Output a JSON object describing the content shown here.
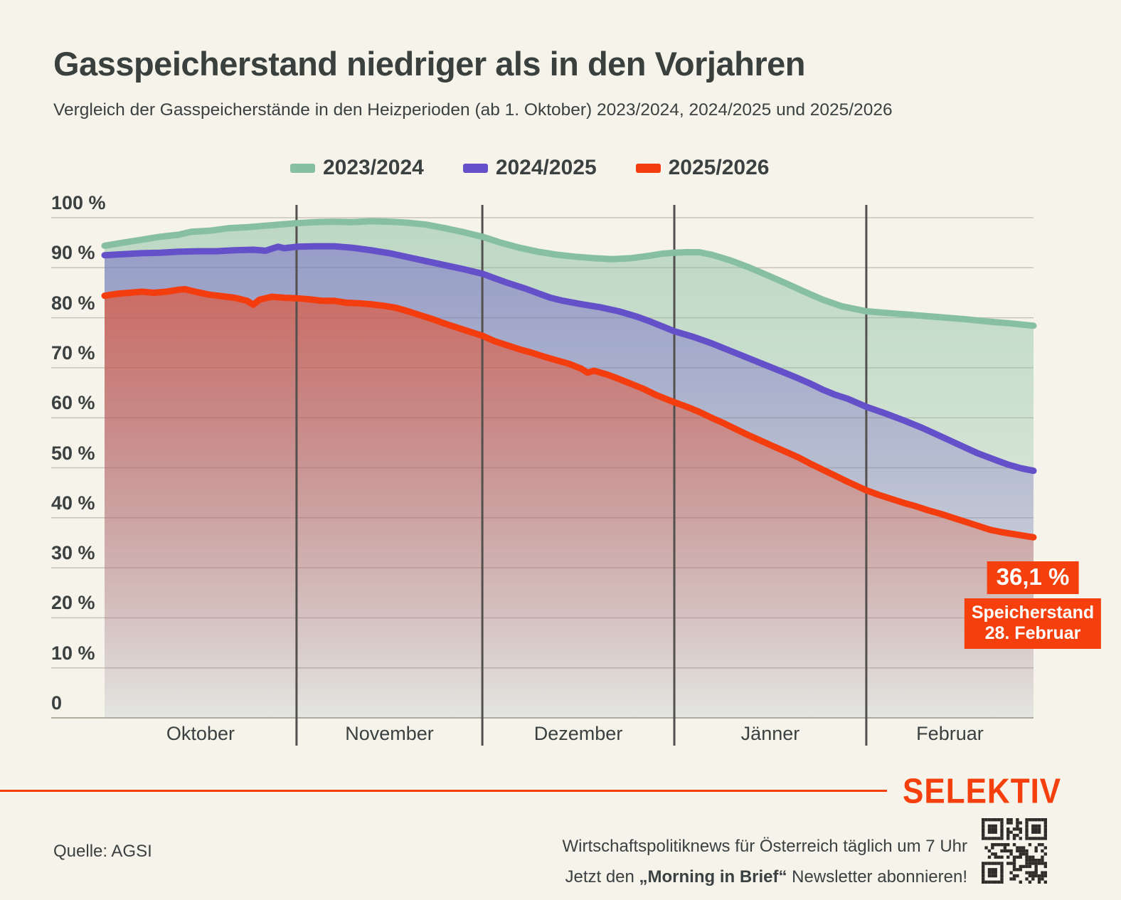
{
  "page": {
    "background": "#f6f3ea",
    "accent": "#f5400d",
    "text_color": "#3a4140"
  },
  "header": {
    "title": "Gasspeicherstand niedriger als in den Vorjahren",
    "subtitle": "Vergleich der Gasspeicherstände in den Heizperioden (ab 1. Oktober) 2023/2024, 2024/2025 und 2025/2026"
  },
  "legend": [
    {
      "label": "2023/2024",
      "color": "#87bfa2"
    },
    {
      "label": "2024/2025",
      "color": "#6450c8"
    },
    {
      "label": "2025/2026",
      "color": "#f43d0e"
    }
  ],
  "chart_data": {
    "type": "area",
    "title": "Gasspeicherstand niedriger als in den Vorjahren",
    "x_unit": "Tage ab 1. Oktober",
    "x_axis": {
      "months": [
        "Oktober",
        "November",
        "Dezember",
        "Jänner",
        "Februar"
      ],
      "month_boundaries_days": [
        0,
        31,
        61,
        92,
        123,
        150
      ]
    },
    "y_axis": {
      "min": 0,
      "max": 100,
      "ticks": [
        100,
        90,
        80,
        70,
        60,
        50,
        40,
        30,
        20,
        10,
        0
      ],
      "labels": [
        "100 %",
        "90 %",
        "80 %",
        "70 %",
        "60 %",
        "50 %",
        "40 %",
        "30 %",
        "20 %",
        "10 %",
        "0"
      ]
    },
    "grid": "horizontal",
    "legend_position": "top",
    "series": [
      {
        "name": "2023/2024",
        "color": "#87bfa2",
        "fill_alpha": [
          0.52,
          0.1
        ],
        "points": [
          [
            0,
            94.4
          ],
          [
            3,
            95.0
          ],
          [
            6,
            95.6
          ],
          [
            9,
            96.2
          ],
          [
            12,
            96.6
          ],
          [
            14,
            97.2
          ],
          [
            17,
            97.4
          ],
          [
            20,
            97.9
          ],
          [
            23,
            98.1
          ],
          [
            26,
            98.4
          ],
          [
            29,
            98.7
          ],
          [
            31,
            98.9
          ],
          [
            34,
            99.1
          ],
          [
            37,
            99.2
          ],
          [
            40,
            99.1
          ],
          [
            43,
            99.3
          ],
          [
            46,
            99.2
          ],
          [
            49,
            99.0
          ],
          [
            52,
            98.6
          ],
          [
            55,
            97.9
          ],
          [
            58,
            97.1
          ],
          [
            61,
            96.2
          ],
          [
            64,
            95.0
          ],
          [
            67,
            94.0
          ],
          [
            70,
            93.2
          ],
          [
            73,
            92.6
          ],
          [
            76,
            92.2
          ],
          [
            79,
            91.9
          ],
          [
            82,
            91.7
          ],
          [
            85,
            91.9
          ],
          [
            88,
            92.4
          ],
          [
            90,
            92.8
          ],
          [
            92,
            93.0
          ],
          [
            94,
            93.1
          ],
          [
            96,
            93.1
          ],
          [
            98,
            92.6
          ],
          [
            101,
            91.5
          ],
          [
            104,
            90.1
          ],
          [
            107,
            88.5
          ],
          [
            110,
            86.9
          ],
          [
            113,
            85.2
          ],
          [
            116,
            83.6
          ],
          [
            119,
            82.3
          ],
          [
            123,
            81.3
          ],
          [
            127,
            80.9
          ],
          [
            131,
            80.5
          ],
          [
            135,
            80.1
          ],
          [
            139,
            79.7
          ],
          [
            143,
            79.2
          ],
          [
            146,
            78.9
          ],
          [
            150,
            78.4
          ]
        ]
      },
      {
        "name": "2024/2025",
        "color": "#6450c8",
        "fill_alpha": [
          0.46,
          0.05
        ],
        "points": [
          [
            0,
            92.5
          ],
          [
            3,
            92.7
          ],
          [
            6,
            92.9
          ],
          [
            9,
            93.0
          ],
          [
            12,
            93.2
          ],
          [
            15,
            93.3
          ],
          [
            18,
            93.3
          ],
          [
            21,
            93.5
          ],
          [
            24,
            93.6
          ],
          [
            26,
            93.4
          ],
          [
            28,
            94.2
          ],
          [
            29,
            93.9
          ],
          [
            31,
            94.2
          ],
          [
            34,
            94.3
          ],
          [
            37,
            94.3
          ],
          [
            40,
            94.0
          ],
          [
            43,
            93.5
          ],
          [
            46,
            92.9
          ],
          [
            49,
            92.1
          ],
          [
            52,
            91.3
          ],
          [
            55,
            90.5
          ],
          [
            58,
            89.7
          ],
          [
            61,
            88.8
          ],
          [
            63,
            87.9
          ],
          [
            65,
            87.0
          ],
          [
            68,
            85.8
          ],
          [
            70,
            84.9
          ],
          [
            72,
            84.0
          ],
          [
            74,
            83.4
          ],
          [
            77,
            82.7
          ],
          [
            80,
            82.1
          ],
          [
            83,
            81.3
          ],
          [
            86,
            80.2
          ],
          [
            88,
            79.3
          ],
          [
            90,
            78.3
          ],
          [
            92,
            77.3
          ],
          [
            95,
            76.2
          ],
          [
            98,
            74.9
          ],
          [
            101,
            73.4
          ],
          [
            104,
            71.9
          ],
          [
            107,
            70.4
          ],
          [
            110,
            68.9
          ],
          [
            112,
            67.9
          ],
          [
            114,
            66.8
          ],
          [
            116,
            65.6
          ],
          [
            118,
            64.6
          ],
          [
            120,
            63.8
          ],
          [
            123,
            62.2
          ],
          [
            126,
            60.9
          ],
          [
            129,
            59.5
          ],
          [
            132,
            58.0
          ],
          [
            135,
            56.3
          ],
          [
            138,
            54.6
          ],
          [
            141,
            52.9
          ],
          [
            144,
            51.5
          ],
          [
            146,
            50.6
          ],
          [
            148,
            49.9
          ],
          [
            150,
            49.4
          ]
        ]
      },
      {
        "name": "2025/2026",
        "color": "#f43d0e",
        "fill_alpha": [
          0.62,
          0.0
        ],
        "points": [
          [
            0,
            84.4
          ],
          [
            2,
            84.8
          ],
          [
            4,
            85.0
          ],
          [
            6,
            85.2
          ],
          [
            8,
            85.0
          ],
          [
            10,
            85.2
          ],
          [
            12,
            85.6
          ],
          [
            13,
            85.7
          ],
          [
            15,
            85.1
          ],
          [
            17,
            84.6
          ],
          [
            19,
            84.3
          ],
          [
            21,
            84.0
          ],
          [
            23,
            83.4
          ],
          [
            24,
            82.6
          ],
          [
            25,
            83.6
          ],
          [
            27,
            84.2
          ],
          [
            29,
            84.0
          ],
          [
            31,
            83.9
          ],
          [
            33,
            83.7
          ],
          [
            35,
            83.4
          ],
          [
            37,
            83.4
          ],
          [
            39,
            83.0
          ],
          [
            41,
            82.9
          ],
          [
            43,
            82.7
          ],
          [
            45,
            82.4
          ],
          [
            47,
            82.0
          ],
          [
            49,
            81.3
          ],
          [
            51,
            80.5
          ],
          [
            53,
            79.7
          ],
          [
            55,
            78.8
          ],
          [
            57,
            78.0
          ],
          [
            59,
            77.2
          ],
          [
            61,
            76.4
          ],
          [
            63,
            75.3
          ],
          [
            65,
            74.5
          ],
          [
            67,
            73.7
          ],
          [
            69,
            73.0
          ],
          [
            71,
            72.2
          ],
          [
            73,
            71.5
          ],
          [
            75,
            70.8
          ],
          [
            77,
            69.8
          ],
          [
            78,
            69.0
          ],
          [
            79,
            69.4
          ],
          [
            81,
            68.7
          ],
          [
            83,
            67.8
          ],
          [
            85,
            66.8
          ],
          [
            87,
            65.8
          ],
          [
            89,
            64.6
          ],
          [
            91,
            63.6
          ],
          [
            92,
            63.1
          ],
          [
            94,
            62.2
          ],
          [
            96,
            61.2
          ],
          [
            98,
            60.0
          ],
          [
            100,
            58.9
          ],
          [
            102,
            57.7
          ],
          [
            104,
            56.5
          ],
          [
            106,
            55.4
          ],
          [
            108,
            54.3
          ],
          [
            110,
            53.2
          ],
          [
            112,
            52.1
          ],
          [
            114,
            50.8
          ],
          [
            116,
            49.6
          ],
          [
            118,
            48.4
          ],
          [
            120,
            47.2
          ],
          [
            123,
            45.5
          ],
          [
            125,
            44.6
          ],
          [
            127,
            43.8
          ],
          [
            129,
            43.0
          ],
          [
            131,
            42.3
          ],
          [
            133,
            41.5
          ],
          [
            135,
            40.8
          ],
          [
            137,
            40.0
          ],
          [
            139,
            39.2
          ],
          [
            141,
            38.4
          ],
          [
            143,
            37.6
          ],
          [
            145,
            37.1
          ],
          [
            147,
            36.7
          ],
          [
            149,
            36.3
          ],
          [
            150,
            36.1
          ]
        ]
      }
    ],
    "annotation": {
      "value": "36,1 %",
      "label_line1": "Speicherstand",
      "label_line2": "28. Februar",
      "day": 150,
      "percent": 36.1,
      "color": "#f5400d"
    }
  },
  "footer": {
    "source": "Quelle: AGSI",
    "brand": "SELEKTIV",
    "line1": "Wirtschaftspolitiknews für Österreich täglich um 7 Uhr",
    "line2_prefix": "Jetzt den ",
    "line2_bold": "„Morning in Brief“",
    "line2_suffix": " Newsletter abonnieren!"
  }
}
